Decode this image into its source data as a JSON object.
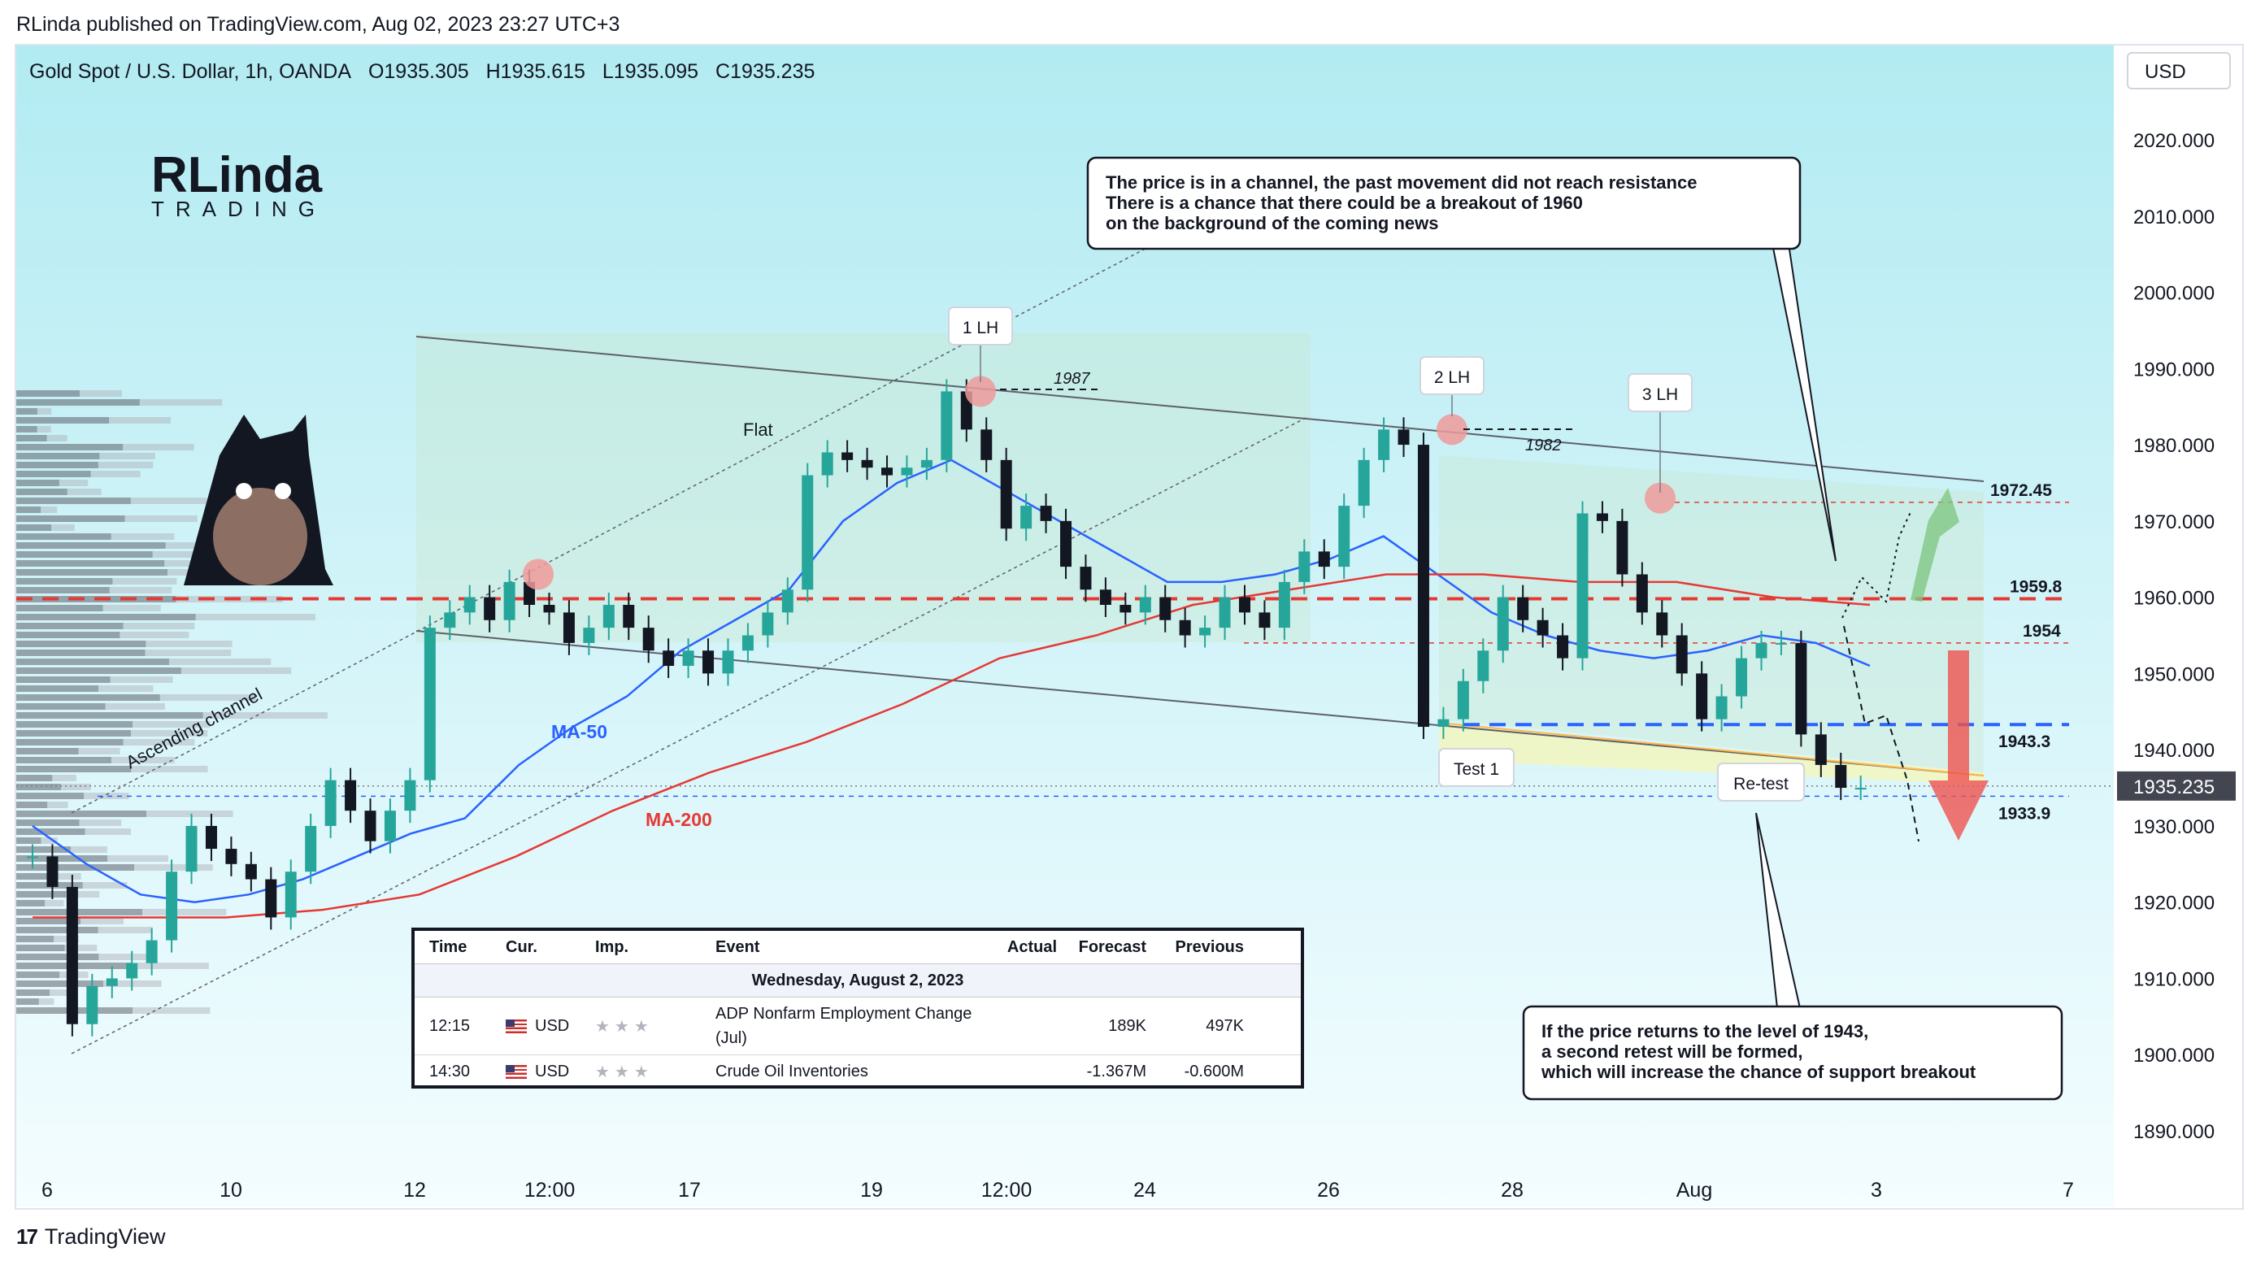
{
  "header": {
    "published": "RLinda published on TradingView.com, Aug 02, 2023 23:27 UTC+3",
    "symbol": "Gold Spot / U.S. Dollar, 1h, OANDA",
    "open": "O1935.305",
    "high": "H1935.615",
    "low": "L1935.095",
    "close": "C1935.235",
    "currency": "USD"
  },
  "footer": {
    "brand": "TradingView",
    "logo": "17"
  },
  "branding": {
    "logo_top": "RLinda",
    "logo_bottom": "TRADING"
  },
  "chart_data": {
    "type": "line",
    "title": "",
    "xlabel": "",
    "ylabel": "",
    "ylim": [
      1884,
      2030
    ],
    "y_ticks": [
      "2020.000",
      "2010.000",
      "2000.000",
      "1990.000",
      "1980.000",
      "1970.000",
      "1960.000",
      "1950.000",
      "1940.000",
      "1930.000",
      "1920.000",
      "1910.000",
      "1900.000",
      "1890.000"
    ],
    "x_ticks": [
      "6",
      "10",
      "12",
      "12:00",
      "17",
      "19",
      "12:00",
      "24",
      "26",
      "28",
      "Aug",
      "3",
      "7"
    ],
    "current_price": "1935.235",
    "price_series": [
      1926,
      1922,
      1904,
      1909,
      1910,
      1912,
      1915,
      1924,
      1930,
      1927,
      1925,
      1923,
      1918,
      1924,
      1930,
      1936,
      1932,
      1928,
      1932,
      1936,
      1956,
      1958,
      1960,
      1957,
      1962,
      1959,
      1958,
      1954,
      1956,
      1959,
      1956,
      1953,
      1951,
      1953,
      1950,
      1953,
      1955,
      1958,
      1961,
      1976,
      1979,
      1978,
      1977,
      1976,
      1977,
      1978,
      1987,
      1982,
      1978,
      1969,
      1972,
      1970,
      1964,
      1961,
      1959,
      1958,
      1960,
      1957,
      1955,
      1956,
      1960,
      1958,
      1956,
      1962,
      1966,
      1964,
      1972,
      1978,
      1982,
      1980,
      1943,
      1944,
      1949,
      1953,
      1960,
      1957,
      1955,
      1952,
      1971,
      1970,
      1963,
      1958,
      1955,
      1950,
      1944,
      1947,
      1952,
      1954,
      1954,
      1942,
      1938,
      1935,
      1935
    ],
    "ma50_series": [
      1930,
      1925,
      1921,
      1920,
      1921,
      1923,
      1926,
      1929,
      1931,
      1938,
      1943,
      1947,
      1953,
      1957,
      1961,
      1970,
      1975,
      1978,
      1974,
      1970,
      1966,
      1962,
      1962,
      1963,
      1965,
      1968,
      1963,
      1958,
      1955,
      1953,
      1952,
      1953,
      1955,
      1954,
      1951
    ],
    "ma200_series": [
      1918,
      1918,
      1918,
      1919,
      1921,
      1926,
      1932,
      1937,
      1941,
      1946,
      1952,
      1955,
      1959,
      1961,
      1963,
      1963,
      1962,
      1962,
      1960,
      1959
    ],
    "levels": [
      "1972.45",
      "1959.8",
      "1954",
      "1943.3",
      "1933.9"
    ],
    "annotations": {
      "lh1": "1 LH",
      "lh2": "2 LH",
      "lh3": "3 LH",
      "level_1987": "1987",
      "level_1982": "1982",
      "flat": "Flat",
      "ascending": "Ascending channel",
      "ma50": "MA-50",
      "ma200": "MA-200",
      "test1": "Test 1",
      "retest": "Re-test",
      "callout_top": [
        "The price is in a channel, the past movement did not reach resistance",
        "There is a chance that there could be a breakout of 1960",
        "on the background of the coming news"
      ],
      "callout_bottom": [
        "If the price returns to the level of 1943,",
        "a second retest will be formed,",
        "which will increase the chance of support breakout"
      ]
    },
    "colors": {
      "up": "#26a69a",
      "down": "#131722",
      "ma50": "#2962ff",
      "ma200": "#e53935",
      "resistance": "#e53935",
      "support": "#2962ff"
    }
  },
  "events": {
    "headers": {
      "time": "Time",
      "cur": "Cur.",
      "imp": "Imp.",
      "event": "Event",
      "actual": "Actual",
      "forecast": "Forecast",
      "previous": "Previous"
    },
    "date": "Wednesday, August 2, 2023",
    "rows": [
      {
        "time": "12:15",
        "cur": "USD",
        "imp": "★★★",
        "event": "ADP Nonfarm Employment Change (Jul)",
        "actual": "",
        "forecast": "189K",
        "previous": "497K"
      },
      {
        "time": "14:30",
        "cur": "USD",
        "imp": "★★★",
        "event": "Crude Oil Inventories",
        "actual": "",
        "forecast": "-1.367M",
        "previous": "-0.600M"
      }
    ]
  }
}
